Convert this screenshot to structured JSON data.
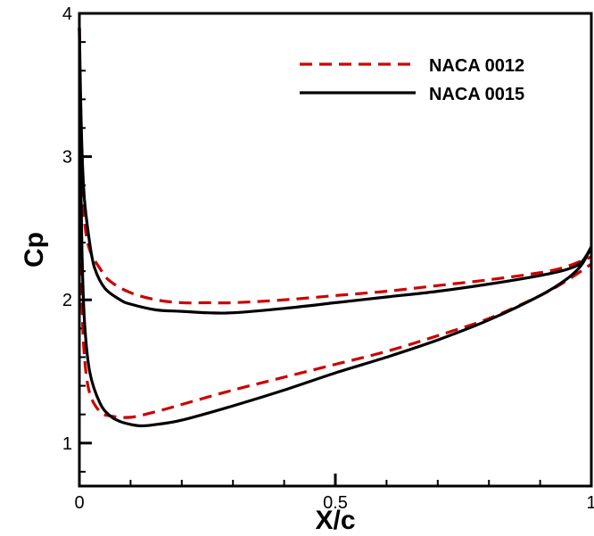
{
  "chart_data": {
    "type": "line",
    "xlabel": "X/c",
    "ylabel": "Cp",
    "xlim": [
      0,
      1
    ],
    "ylim": [
      0.7,
      4
    ],
    "grid": false,
    "legend_position": "top-right",
    "x_ticks": [
      0,
      0.5,
      1
    ],
    "x_tick_labels": [
      "0",
      "0.5",
      "1"
    ],
    "y_ticks": [
      1,
      2,
      3,
      4
    ],
    "y_tick_labels": [
      "1",
      "2",
      "3",
      "4"
    ],
    "series": [
      {
        "name": "NACA 0012",
        "color": "#cc0000",
        "dash": "dashed",
        "upper": {
          "x": [
            0.0,
            0.002,
            0.005,
            0.01,
            0.02,
            0.04,
            0.06,
            0.1,
            0.15,
            0.2,
            0.25,
            0.3,
            0.4,
            0.5,
            0.6,
            0.7,
            0.8,
            0.9,
            0.95,
            1.0
          ],
          "y": [
            3.9,
            3.3,
            2.85,
            2.55,
            2.35,
            2.22,
            2.13,
            2.05,
            2.0,
            1.98,
            1.98,
            1.98,
            2.0,
            2.03,
            2.06,
            2.1,
            2.14,
            2.19,
            2.23,
            2.3
          ]
        },
        "lower": {
          "x": [
            0.0,
            0.002,
            0.005,
            0.01,
            0.02,
            0.04,
            0.06,
            0.1,
            0.15,
            0.2,
            0.3,
            0.4,
            0.5,
            0.6,
            0.7,
            0.8,
            0.9,
            0.95,
            1.0
          ],
          "y": [
            3.9,
            2.7,
            2.0,
            1.6,
            1.35,
            1.22,
            1.19,
            1.18,
            1.22,
            1.27,
            1.37,
            1.46,
            1.55,
            1.64,
            1.75,
            1.87,
            2.03,
            2.13,
            2.25
          ]
        }
      },
      {
        "name": "NACA 0015",
        "color": "#000000",
        "dash": "solid",
        "upper": {
          "x": [
            0.0,
            0.002,
            0.005,
            0.01,
            0.02,
            0.03,
            0.05,
            0.08,
            0.1,
            0.15,
            0.2,
            0.25,
            0.3,
            0.4,
            0.5,
            0.6,
            0.7,
            0.8,
            0.9,
            0.95,
            0.98,
            1.0
          ],
          "y": [
            3.9,
            3.5,
            3.05,
            2.7,
            2.4,
            2.22,
            2.08,
            2.0,
            1.97,
            1.93,
            1.92,
            1.91,
            1.91,
            1.94,
            1.98,
            2.02,
            2.06,
            2.11,
            2.17,
            2.21,
            2.26,
            2.37
          ]
        },
        "lower": {
          "x": [
            0.0,
            0.002,
            0.005,
            0.01,
            0.02,
            0.04,
            0.06,
            0.08,
            0.1,
            0.12,
            0.15,
            0.2,
            0.3,
            0.4,
            0.5,
            0.6,
            0.7,
            0.8,
            0.9,
            0.95,
            0.98,
            1.0
          ],
          "y": [
            3.9,
            3.0,
            2.35,
            1.85,
            1.5,
            1.28,
            1.19,
            1.15,
            1.13,
            1.12,
            1.13,
            1.16,
            1.26,
            1.37,
            1.49,
            1.6,
            1.72,
            1.86,
            2.03,
            2.14,
            2.24,
            2.37
          ]
        }
      }
    ]
  }
}
